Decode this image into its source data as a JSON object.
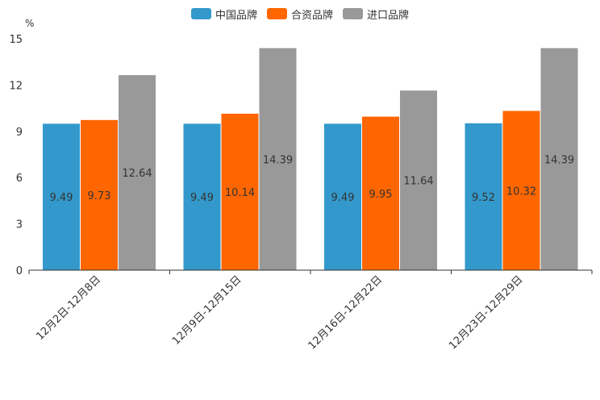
{
  "chart_data": {
    "type": "bar",
    "unit": "%",
    "categories": [
      "12月2日-12月8日",
      "12月9日-12月15日",
      "12月16日-12月22日",
      "12月23日-12月29日"
    ],
    "series": [
      {
        "name": "中国品牌",
        "color": "#3399cc",
        "values": [
          9.49,
          9.49,
          9.49,
          9.52
        ],
        "labels": [
          "9.49",
          "9.49",
          "9.49",
          "9.52"
        ]
      },
      {
        "name": "合资品牌",
        "color": "#ff6600",
        "values": [
          9.73,
          10.14,
          9.95,
          10.32
        ],
        "labels": [
          "9.73",
          "10.14",
          "9.95",
          "10.32"
        ]
      },
      {
        "name": "进口品牌",
        "color": "#999999",
        "values": [
          12.64,
          14.39,
          11.64,
          14.39
        ],
        "labels": [
          "12.64",
          "14.39",
          "11.64",
          "14.39"
        ]
      }
    ],
    "yticks": [
      "0",
      "3",
      "6",
      "9",
      "12",
      "15"
    ],
    "ylim": [
      0,
      15
    ],
    "grid": false,
    "legend_position": "top-center"
  }
}
